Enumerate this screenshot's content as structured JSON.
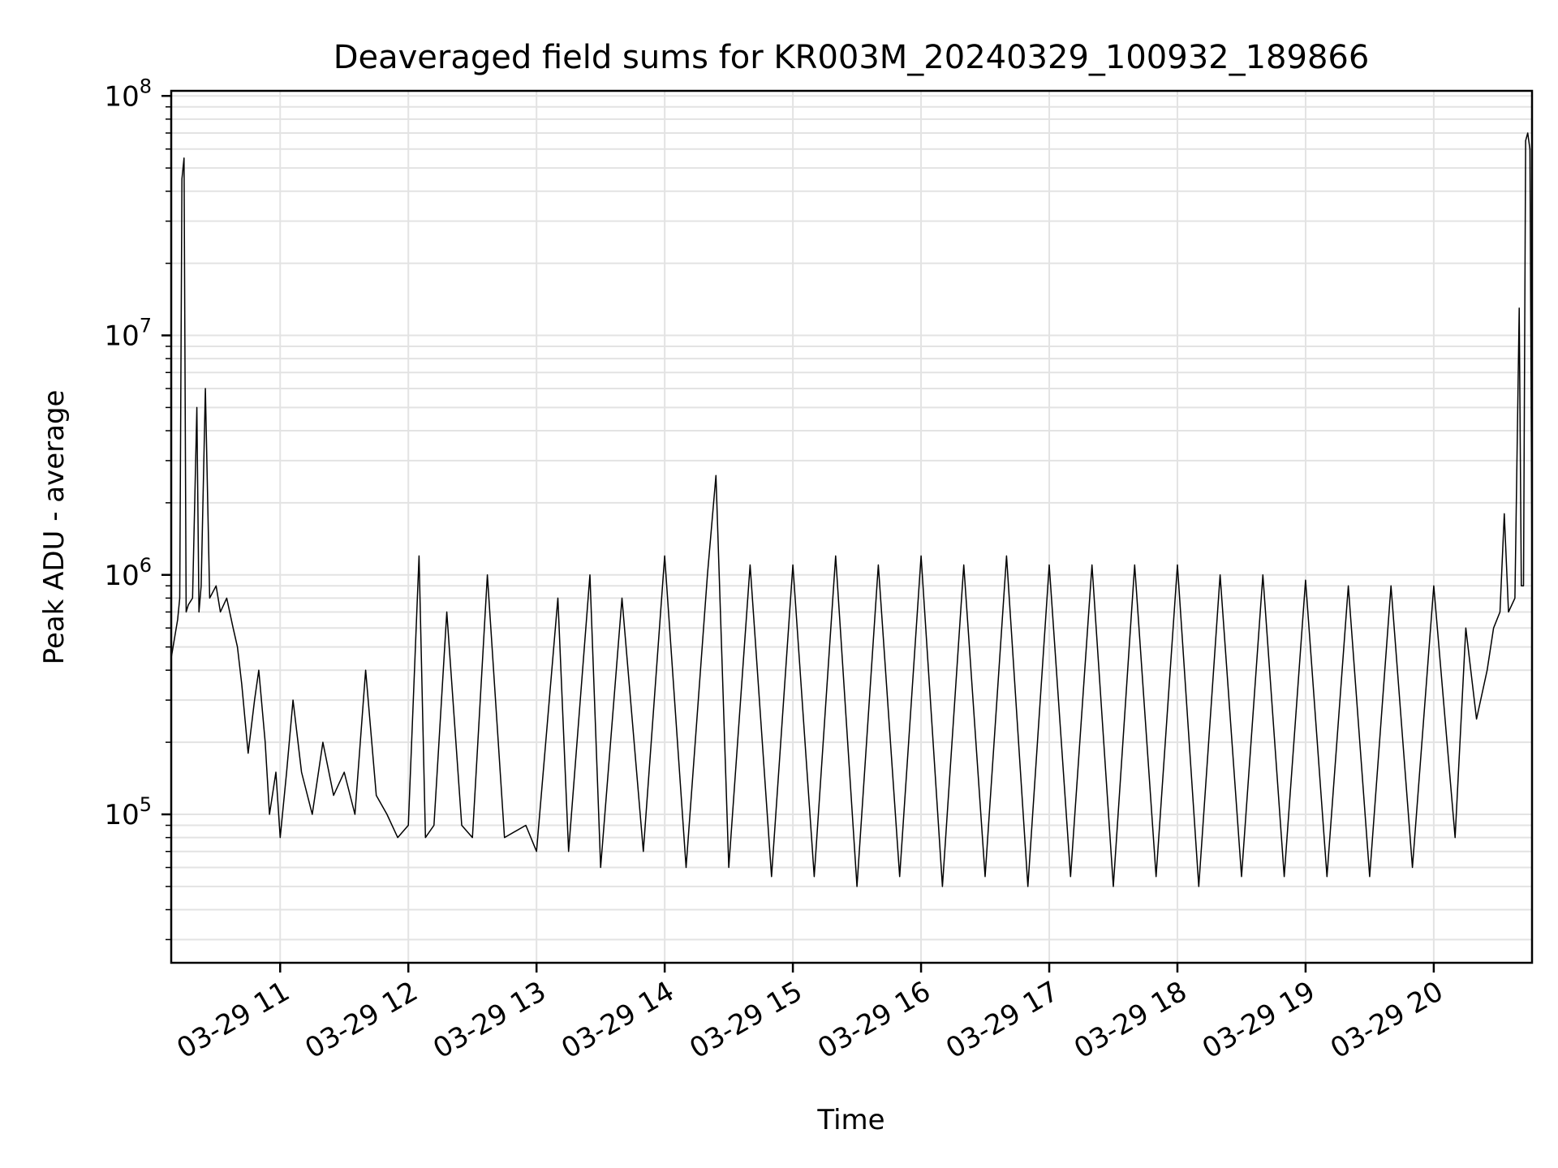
{
  "chart_data": {
    "type": "line",
    "title": "Deaveraged field sums for KR003M_20240329_100932_189866",
    "xlabel": "Time",
    "ylabel": "Peak ADU - average",
    "yscale": "log",
    "ylim": [
      24000,
      105000000
    ],
    "xlim": [
      "2024-03-29 10:09",
      "2024-03-29 20:46"
    ],
    "grid": true,
    "line_color": "#000000",
    "grid_color": "#e3e3e3",
    "x_ticks": [
      {
        "value": "2024-03-29 11:00",
        "label": "03-29 11"
      },
      {
        "value": "2024-03-29 12:00",
        "label": "03-29 12"
      },
      {
        "value": "2024-03-29 13:00",
        "label": "03-29 13"
      },
      {
        "value": "2024-03-29 14:00",
        "label": "03-29 14"
      },
      {
        "value": "2024-03-29 15:00",
        "label": "03-29 15"
      },
      {
        "value": "2024-03-29 16:00",
        "label": "03-29 16"
      },
      {
        "value": "2024-03-29 17:00",
        "label": "03-29 17"
      },
      {
        "value": "2024-03-29 18:00",
        "label": "03-29 18"
      },
      {
        "value": "2024-03-29 19:00",
        "label": "03-29 19"
      },
      {
        "value": "2024-03-29 20:00",
        "label": "03-29 20"
      }
    ],
    "y_ticks": [
      {
        "value": 100000,
        "base": "10",
        "exp": "5"
      },
      {
        "value": 1000000,
        "base": "10",
        "exp": "6"
      },
      {
        "value": 10000000,
        "base": "10",
        "exp": "7"
      },
      {
        "value": 100000000,
        "base": "10",
        "exp": "8"
      }
    ],
    "series": [
      {
        "x": [
          "2024-03-29 10:09",
          "2024-03-29 10:12",
          "2024-03-29 10:13",
          "2024-03-29 10:14",
          "2024-03-29 10:15",
          "2024-03-29 10:16",
          "2024-03-29 10:17",
          "2024-03-29 10:19",
          "2024-03-29 10:21",
          "2024-03-29 10:22",
          "2024-03-29 10:23",
          "2024-03-29 10:25",
          "2024-03-29 10:27",
          "2024-03-29 10:30",
          "2024-03-29 10:32",
          "2024-03-29 10:35",
          "2024-03-29 10:38",
          "2024-03-29 10:40",
          "2024-03-29 10:42",
          "2024-03-29 10:45",
          "2024-03-29 10:48",
          "2024-03-29 10:50",
          "2024-03-29 10:53",
          "2024-03-29 10:55",
          "2024-03-29 10:58",
          "2024-03-29 11:00",
          "2024-03-29 11:03",
          "2024-03-29 11:06",
          "2024-03-29 11:10",
          "2024-03-29 11:15",
          "2024-03-29 11:20",
          "2024-03-29 11:25",
          "2024-03-29 11:30",
          "2024-03-29 11:35",
          "2024-03-29 11:40",
          "2024-03-29 11:45",
          "2024-03-29 11:50",
          "2024-03-29 11:55",
          "2024-03-29 12:00",
          "2024-03-29 12:05",
          "2024-03-29 12:08",
          "2024-03-29 12:12",
          "2024-03-29 12:18",
          "2024-03-29 12:25",
          "2024-03-29 12:30",
          "2024-03-29 12:37",
          "2024-03-29 12:45",
          "2024-03-29 12:55",
          "2024-03-29 13:00",
          "2024-03-29 13:10",
          "2024-03-29 13:15",
          "2024-03-29 13:25",
          "2024-03-29 13:30",
          "2024-03-29 13:40",
          "2024-03-29 13:50",
          "2024-03-29 14:00",
          "2024-03-29 14:10",
          "2024-03-29 14:20",
          "2024-03-29 14:24",
          "2024-03-29 14:30",
          "2024-03-29 14:40",
          "2024-03-29 14:50",
          "2024-03-29 15:00",
          "2024-03-29 15:10",
          "2024-03-29 15:20",
          "2024-03-29 15:30",
          "2024-03-29 15:40",
          "2024-03-29 15:50",
          "2024-03-29 16:00",
          "2024-03-29 16:10",
          "2024-03-29 16:20",
          "2024-03-29 16:30",
          "2024-03-29 16:40",
          "2024-03-29 16:50",
          "2024-03-29 17:00",
          "2024-03-29 17:10",
          "2024-03-29 17:20",
          "2024-03-29 17:30",
          "2024-03-29 17:40",
          "2024-03-29 17:50",
          "2024-03-29 18:00",
          "2024-03-29 18:10",
          "2024-03-29 18:20",
          "2024-03-29 18:30",
          "2024-03-29 18:40",
          "2024-03-29 18:50",
          "2024-03-29 19:00",
          "2024-03-29 19:10",
          "2024-03-29 19:20",
          "2024-03-29 19:30",
          "2024-03-29 19:40",
          "2024-03-29 19:50",
          "2024-03-29 20:00",
          "2024-03-29 20:10",
          "2024-03-29 20:15",
          "2024-03-29 20:20",
          "2024-03-29 20:25",
          "2024-03-29 20:28",
          "2024-03-29 20:31",
          "2024-03-29 20:33",
          "2024-03-29 20:35",
          "2024-03-29 20:38",
          "2024-03-29 20:40",
          "2024-03-29 20:41",
          "2024-03-29 20:42",
          "2024-03-29 20:43",
          "2024-03-29 20:44",
          "2024-03-29 20:45",
          "2024-03-29 20:46"
        ],
        "y": [
          450000,
          650000,
          800000,
          45000000,
          55000000,
          700000,
          750000,
          800000,
          5000000,
          700000,
          900000,
          6000000,
          800000,
          900000,
          700000,
          800000,
          600000,
          500000,
          350000,
          180000,
          300000,
          400000,
          200000,
          100000,
          150000,
          80000,
          150000,
          300000,
          150000,
          100000,
          200000,
          120000,
          150000,
          100000,
          400000,
          120000,
          100000,
          80000,
          90000,
          1200000,
          80000,
          90000,
          700000,
          90000,
          80000,
          1000000,
          80000,
          90000,
          70000,
          800000,
          70000,
          1000000,
          60000,
          800000,
          70000,
          1200000,
          60000,
          1000000,
          2600000,
          60000,
          1100000,
          55000,
          1100000,
          55000,
          1200000,
          50000,
          1100000,
          55000,
          1200000,
          50000,
          1100000,
          55000,
          1200000,
          50000,
          1100000,
          55000,
          1100000,
          50000,
          1100000,
          55000,
          1100000,
          50000,
          1000000,
          55000,
          1000000,
          55000,
          950000,
          55000,
          900000,
          55000,
          900000,
          60000,
          900000,
          80000,
          600000,
          250000,
          400000,
          600000,
          700000,
          1800000,
          700000,
          800000,
          13000000,
          900000,
          900000,
          65000000,
          70000000,
          60000000,
          1000000
        ]
      }
    ]
  }
}
